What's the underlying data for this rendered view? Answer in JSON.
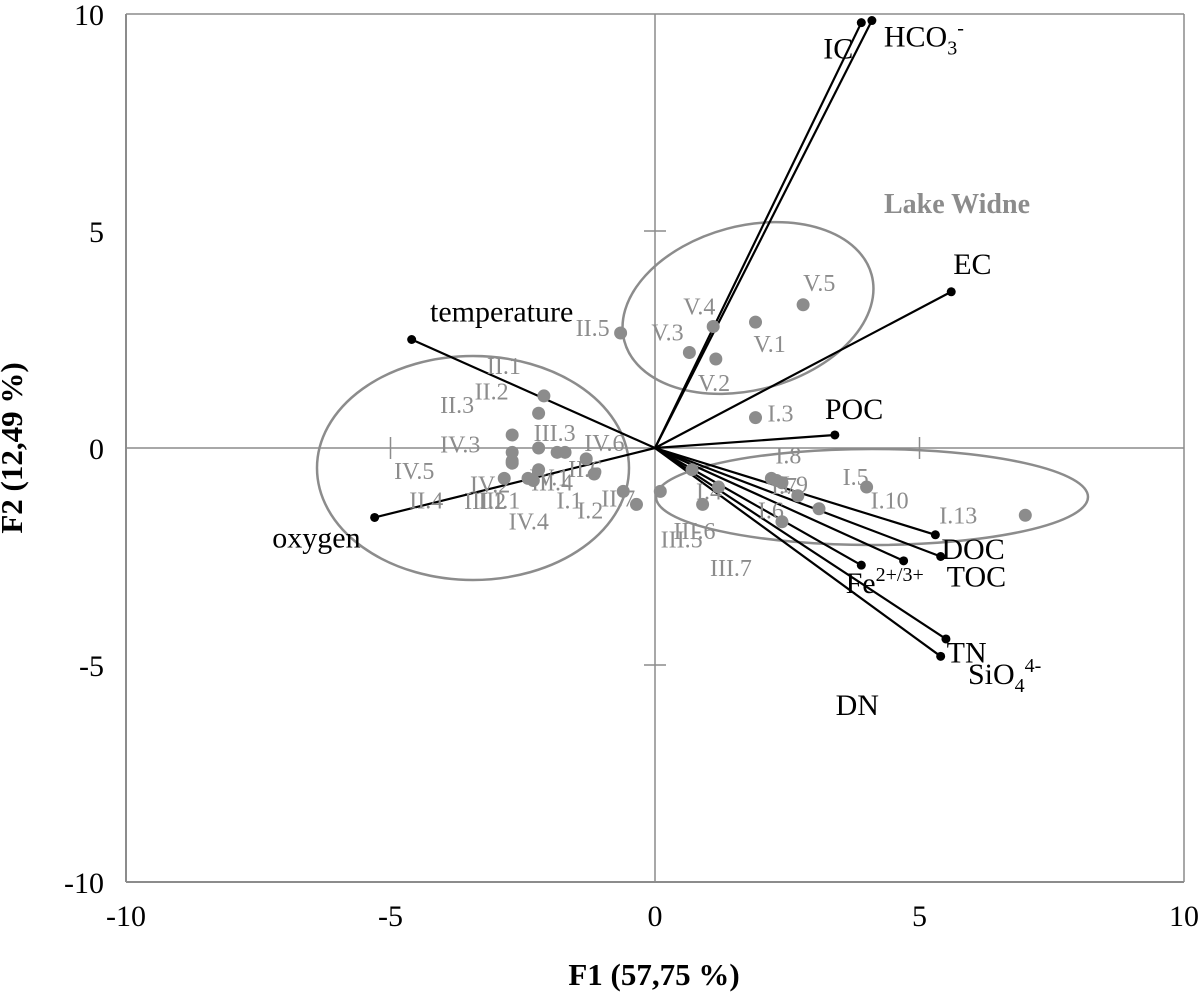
{
  "chart_data": {
    "type": "scatter",
    "subtype": "biplot",
    "xlabel": "F1 (57,75 %)",
    "ylabel": "F2 (12,49 %)",
    "xlim": [
      -10,
      10
    ],
    "ylim": [
      -10,
      10
    ],
    "xticks": [
      "-10",
      "-5",
      "0",
      "5",
      "10"
    ],
    "yticks": [
      "-10",
      "-5",
      "0",
      "5",
      "10"
    ],
    "grid": false,
    "colors": {
      "variables": "#000000",
      "observations": "#8c8c8c",
      "ellipses": "#8c8c8c",
      "axes": "#8c8c8c"
    },
    "variables": [
      {
        "label": "IC",
        "x": 3.9,
        "y": 9.8
      },
      {
        "label_parts": [
          "HCO",
          "3",
          "-"
        ],
        "x": 4.1,
        "y": 9.85
      },
      {
        "label": "EC",
        "x": 5.6,
        "y": 3.6
      },
      {
        "label": "POC",
        "x": 3.4,
        "y": 0.3
      },
      {
        "label": "temperature",
        "x": -4.6,
        "y": 2.5
      },
      {
        "label": "oxygen",
        "x": -5.3,
        "y": -1.6
      },
      {
        "label": "DOC",
        "x": 5.3,
        "y": -2.0
      },
      {
        "label": "TOC",
        "x": 5.4,
        "y": -2.5
      },
      {
        "label_parts": [
          "Fe",
          "2+/3+"
        ],
        "x": 4.7,
        "y": -2.6
      },
      {
        "label": "DN",
        "x": 3.9,
        "y": -2.7
      },
      {
        "label_parts": [
          "SiO",
          "4",
          "4-"
        ],
        "x": 5.5,
        "y": -4.4
      },
      {
        "label": "TN",
        "x": 5.4,
        "y": -4.8
      }
    ],
    "observations": [
      {
        "label": "V.4",
        "x": 1.1,
        "y": 2.8
      },
      {
        "label": "V.5",
        "x": 2.8,
        "y": 3.3
      },
      {
        "label": "V.3",
        "x": 0.65,
        "y": 2.2
      },
      {
        "label": "V.1",
        "x": 1.9,
        "y": 2.9
      },
      {
        "label": "V.2",
        "x": 1.15,
        "y": 2.05
      },
      {
        "label": "II.5",
        "x": -0.65,
        "y": 2.65
      },
      {
        "label": "II.1",
        "x": -2.1,
        "y": 1.2
      },
      {
        "label": "II.2",
        "x": -2.2,
        "y": 0.8
      },
      {
        "label": "II.3",
        "x": -2.7,
        "y": 0.3
      },
      {
        "label": "III.3",
        "x": -2.2,
        "y": 0.0
      },
      {
        "label": "IV.3",
        "x": -2.7,
        "y": -0.1
      },
      {
        "label": "IV.5",
        "x": -2.7,
        "y": -0.35
      },
      {
        "label": "IV.2",
        "x": -2.4,
        "y": -0.7
      },
      {
        "label": "II.4",
        "x": -2.85,
        "y": -0.7
      },
      {
        "label": "III.1",
        "x": -2.3,
        "y": -0.75
      },
      {
        "label": "III.2",
        "x": -2.7,
        "y": -0.3
      },
      {
        "label": "IV.4",
        "x": -2.2,
        "y": -0.5
      },
      {
        "label": "III.4",
        "x": -1.7,
        "y": -0.1
      },
      {
        "label": "IV.1",
        "x": -1.85,
        "y": -0.1
      },
      {
        "label": "IV.6",
        "x": -1.3,
        "y": -0.25
      },
      {
        "label": "II.6",
        "x": -1.15,
        "y": -0.6
      },
      {
        "label": "II.7",
        "x": -0.6,
        "y": -1.0
      },
      {
        "label": "I.1",
        "x": -0.35,
        "y": -1.3
      },
      {
        "label": "I.2",
        "x": 0.1,
        "y": -1.0
      },
      {
        "label": "I.3",
        "x": 1.9,
        "y": 0.7
      },
      {
        "label": "I.4",
        "x": 0.7,
        "y": -0.5
      },
      {
        "label": "III.5",
        "x": 0.9,
        "y": -1.3
      },
      {
        "label": "III.6",
        "x": 1.2,
        "y": -0.9
      },
      {
        "label": "III.7",
        "x": 2.4,
        "y": -1.7
      },
      {
        "label": "I.5",
        "x": 4.0,
        "y": -0.9
      },
      {
        "label": "I.6",
        "x": 2.7,
        "y": -1.1
      },
      {
        "label": "I.7",
        "x": 3.1,
        "y": -1.4
      },
      {
        "label": "I.8",
        "x": 2.2,
        "y": -0.7
      },
      {
        "label": "I.9",
        "x": 2.4,
        "y": -0.8
      },
      {
        "label": "I.10",
        "x": 2.3,
        "y": -0.75
      },
      {
        "label": "I.13",
        "x": 7.0,
        "y": -1.55
      }
    ],
    "groups": [
      {
        "label": "Lake Widne",
        "cx": 1.8,
        "cy": 3.2
      },
      {
        "label": "",
        "cx": -3.3,
        "cy": -0.5
      },
      {
        "label": "",
        "cx": 4.5,
        "cy": -1.2
      }
    ]
  }
}
